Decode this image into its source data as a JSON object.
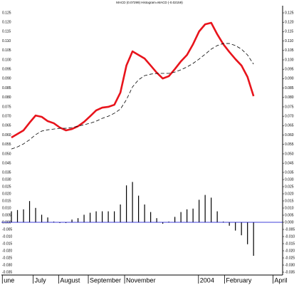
{
  "chart_data": [
    {
      "type": "line",
      "title": "MACD (0.07299) Histogram=MACD (-0.02159)",
      "xlim": [
        -1.65,
        44.8
      ],
      "ylim": [
        0.0424,
        0.1288
      ],
      "yticks": [
        0.125,
        {
          "value": 0.12,
          "label": "0.120"
        },
        0.115,
        {
          "value": 0.11,
          "label": "0.110"
        },
        0.105,
        {
          "value": 0.1,
          "label": "0.100"
        },
        0.095,
        {
          "value": 0.09,
          "label": "0.090"
        },
        0.085,
        {
          "value": 0.08,
          "label": "0.080"
        },
        0.075,
        {
          "value": 0.07,
          "label": "0.070"
        },
        0.065,
        {
          "value": 0.06,
          "label": "0.060"
        },
        0.055,
        {
          "value": 0.05,
          "label": "0.050"
        },
        0.045
      ],
      "series": [
        {
          "color": "#e8141c",
          "dashed": false,
          "values": [
            0.0587,
            0.0606,
            0.0625,
            0.0666,
            0.0704,
            0.0697,
            0.0674,
            0.0663,
            0.064,
            0.0625,
            0.0632,
            0.0647,
            0.067,
            0.07,
            0.0731,
            0.0746,
            0.075,
            0.0761,
            0.0826,
            0.097,
            0.1045,
            0.1026,
            0.1007,
            0.097,
            0.0932,
            0.0901,
            0.0913,
            0.0951,
            0.0992,
            0.1026,
            0.1083,
            0.1151,
            0.1189,
            0.1197,
            0.1136,
            0.1083,
            0.1042,
            0.1004,
            0.097,
            0.0909,
            0.0807
          ]
        },
        {
          "color": "#000000",
          "dashed": true,
          "values": [
            0.0526,
            0.0537,
            0.0553,
            0.0575,
            0.0602,
            0.0621,
            0.0628,
            0.0632,
            0.0636,
            0.0636,
            0.064,
            0.0647,
            0.0655,
            0.0663,
            0.0674,
            0.0689,
            0.07,
            0.0716,
            0.0738,
            0.0788,
            0.0856,
            0.0894,
            0.0916,
            0.0924,
            0.0928,
            0.0928,
            0.0928,
            0.0935,
            0.0947,
            0.0962,
            0.0981,
            0.1004,
            0.103,
            0.1057,
            0.1076,
            0.1087,
            0.1087,
            0.1076,
            0.1057,
            0.1026,
            0.0977
          ]
        }
      ]
    },
    {
      "type": "bar",
      "color": "#000000",
      "zero_line_color": "#0000cc",
      "xlim": [
        -1.65,
        44.8
      ],
      "ylim": [
        -0.037,
        0.037
      ],
      "yticks": [
        0.035,
        {
          "value": 0.03,
          "label": "0.030"
        },
        0.025,
        {
          "value": 0.02,
          "label": "0.020"
        },
        0.015,
        {
          "value": 0.01,
          "label": "0.010"
        },
        0.005,
        {
          "value": 0,
          "label": "0.000"
        },
        -0.005,
        {
          "value": -0.01,
          "label": "-0.010"
        },
        -0.015,
        {
          "value": -0.02,
          "label": "-0.020"
        },
        -0.025,
        {
          "value": -0.03,
          "label": "-0.030"
        },
        -0.035
      ],
      "xticks": [
        {
          "value": -1.5,
          "label": "une"
        },
        {
          "value": 3.6,
          "label": "July"
        },
        {
          "value": 7.8,
          "label": "August"
        },
        {
          "value": 12.7,
          "label": "September"
        },
        {
          "value": 18.7,
          "label": "November"
        },
        {
          "value": 30.9,
          "label": "2004"
        },
        {
          "value": 35.2,
          "label": "February"
        },
        {
          "value": 43.2,
          "label": "April"
        }
      ],
      "values": [
        0.0077,
        0.0086,
        0.0091,
        0.0149,
        0.0101,
        0.0053,
        0.0034,
        0.0005,
        -0.0005,
        -0.0005,
        0.0019,
        0.0029,
        0.0053,
        0.0067,
        0.0077,
        0.0077,
        0.0077,
        0.0077,
        0.0125,
        0.0259,
        0.0283,
        0.0187,
        0.0125,
        0.0072,
        0.0029,
        -0.001,
        0.0005,
        0.0038,
        0.0072,
        0.0091,
        0.0096,
        0.0158,
        0.0192,
        0.0173,
        0.0077,
        0.0005,
        -0.0024,
        -0.0058,
        -0.0091,
        -0.0154,
        -0.0235
      ]
    }
  ]
}
